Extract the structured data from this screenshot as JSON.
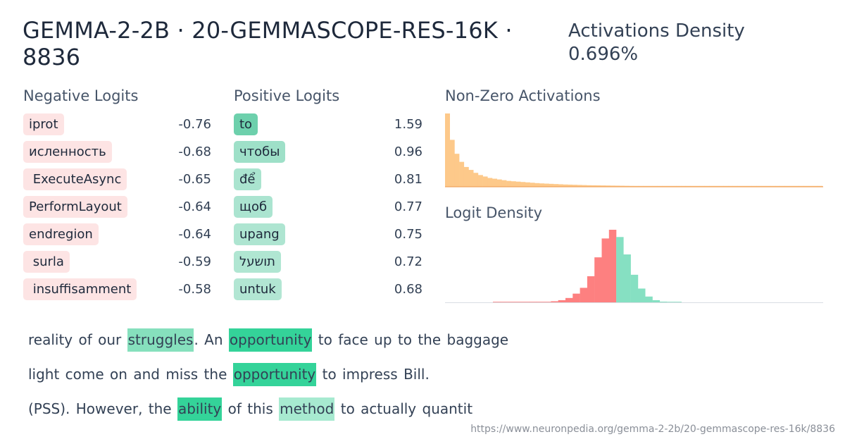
{
  "header": {
    "title": "GEMMA-2-2B · 20-GEMMASCOPE-RES-16K · 8836",
    "density_label": "Activations Density",
    "density_value": "0.696%"
  },
  "negative_logits": {
    "title": "Negative Logits",
    "items": [
      {
        "token": "iprot",
        "value": "-0.76"
      },
      {
        "token": "исленность",
        "value": "-0.68"
      },
      {
        "token": " ExecuteAsync",
        "value": "-0.65"
      },
      {
        "token": "PerformLayout",
        "value": "-0.64"
      },
      {
        "token": "endregion",
        "value": "-0.64"
      },
      {
        "token": " surla",
        "value": "-0.59"
      },
      {
        "token": " insuffisamment",
        "value": "-0.58"
      }
    ]
  },
  "positive_logits": {
    "title": "Positive Logits",
    "items": [
      {
        "token": "to",
        "value": "1.59",
        "strength": 1.0
      },
      {
        "token": "чтобы",
        "value": "0.96",
        "strength": 0.6
      },
      {
        "token": "để",
        "value": "0.81",
        "strength": 0.5
      },
      {
        "token": "щоб",
        "value": "0.77",
        "strength": 0.48
      },
      {
        "token": "upang",
        "value": "0.75",
        "strength": 0.47
      },
      {
        "token": "תושעל",
        "value": "0.72",
        "strength": 0.45
      },
      {
        "token": "untuk",
        "value": "0.68",
        "strength": 0.43
      }
    ]
  },
  "nonzero_activations": {
    "title": "Non-Zero Activations",
    "color": "#fdc98a",
    "line_color": "#f0a35e",
    "values": [
      1.0,
      0.64,
      0.45,
      0.34,
      0.27,
      0.23,
      0.19,
      0.16,
      0.14,
      0.12,
      0.11,
      0.1,
      0.09,
      0.08,
      0.075,
      0.07,
      0.065,
      0.06,
      0.055,
      0.05,
      0.046,
      0.043,
      0.04,
      0.037,
      0.034,
      0.031,
      0.029,
      0.027,
      0.025,
      0.023,
      0.021,
      0.02,
      0.019,
      0.018,
      0.017,
      0.016,
      0.015,
      0.014,
      0.013,
      0.012,
      0.011,
      0.01,
      0.01,
      0.009,
      0.009,
      0.008,
      0.008,
      0.007,
      0.007,
      0.006,
      0.006,
      0.005,
      0.005,
      0.005,
      0.004,
      0.004,
      0.004,
      0.003,
      0.003,
      0.003,
      0.003,
      0.002,
      0.002,
      0.002,
      0.002,
      0.002,
      0.002,
      0.002,
      0.002,
      0.002,
      0.002,
      0.002,
      0.002,
      0.002,
      0.002,
      0.002,
      0.002,
      0.002,
      0.002,
      0.002
    ]
  },
  "logit_density": {
    "title": "Logit Density",
    "neg_color": "#fd8080",
    "pos_color": "#86e0c2",
    "bins": [
      {
        "v": 0.002,
        "s": "neg"
      },
      {
        "v": 0.002,
        "s": "neg"
      },
      {
        "v": 0.002,
        "s": "neg"
      },
      {
        "v": 0.002,
        "s": "neg"
      },
      {
        "v": 0.002,
        "s": "neg"
      },
      {
        "v": 0.002,
        "s": "neg"
      },
      {
        "v": 0.002,
        "s": "neg"
      },
      {
        "v": 0.002,
        "s": "neg"
      },
      {
        "v": 0.015,
        "s": "neg"
      },
      {
        "v": 0.03,
        "s": "neg"
      },
      {
        "v": 0.06,
        "s": "neg"
      },
      {
        "v": 0.12,
        "s": "neg"
      },
      {
        "v": 0.2,
        "s": "neg"
      },
      {
        "v": 0.36,
        "s": "neg"
      },
      {
        "v": 0.62,
        "s": "neg"
      },
      {
        "v": 0.88,
        "s": "neg"
      },
      {
        "v": 1.0,
        "s": "neg"
      },
      {
        "v": 0.9,
        "s": "pos"
      },
      {
        "v": 0.66,
        "s": "pos"
      },
      {
        "v": 0.38,
        "s": "pos"
      },
      {
        "v": 0.19,
        "s": "pos"
      },
      {
        "v": 0.08,
        "s": "pos"
      },
      {
        "v": 0.03,
        "s": "pos"
      },
      {
        "v": 0.01,
        "s": "pos"
      },
      {
        "v": 0.004,
        "s": "pos"
      },
      {
        "v": 0.002,
        "s": "pos"
      }
    ]
  },
  "examples": [
    [
      {
        "t": "reality of our "
      },
      {
        "t": "struggles",
        "hl": "mid"
      },
      {
        "t": ". An "
      },
      {
        "t": "opportunity",
        "hl": "strong"
      },
      {
        "t": " to face up to the baggage"
      }
    ],
    [
      {
        "t": "light come on and miss the "
      },
      {
        "t": "opportunity",
        "hl": "strong"
      },
      {
        "t": " to impress Bill."
      }
    ],
    [
      {
        "t": "(PSS). However, the "
      },
      {
        "t": "ability",
        "hl": "strong"
      },
      {
        "t": " of this "
      },
      {
        "t": "method",
        "hl": "light"
      },
      {
        "t": " to actually quantit"
      }
    ]
  ],
  "footer": {
    "url": "https://www.neuronpedia.org/gemma-2-2b/20-gemmascope-res-16k/8836"
  }
}
